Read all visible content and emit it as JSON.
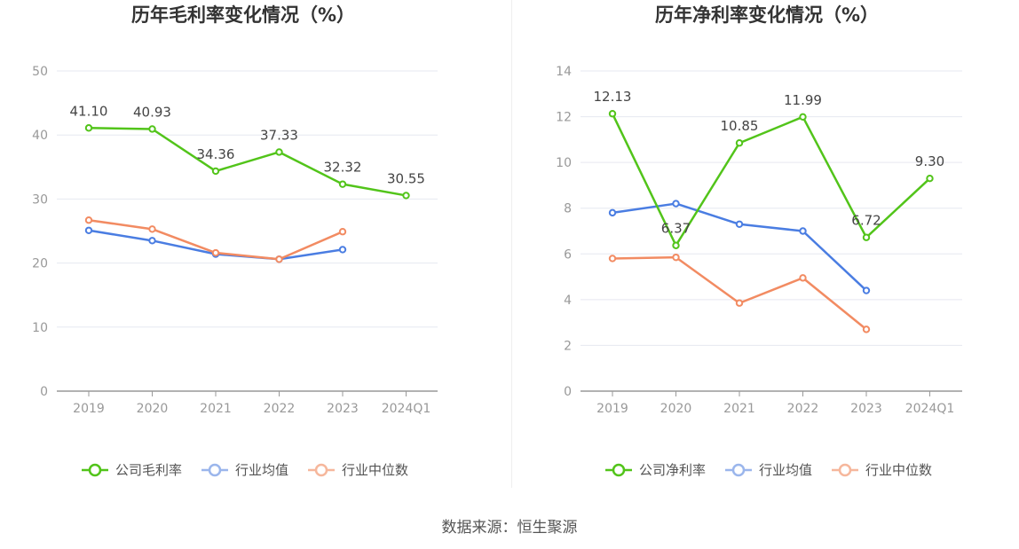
{
  "chart_data": [
    {
      "type": "line",
      "title": "历年毛利率变化情况（%）",
      "categories": [
        "2019",
        "2020",
        "2021",
        "2022",
        "2023",
        "2024Q1"
      ],
      "ylim": [
        0,
        50
      ],
      "yticks": [
        0,
        10,
        20,
        30,
        40,
        50
      ],
      "grid": true,
      "legend_position": "bottom",
      "series": [
        {
          "name": "公司毛利率",
          "color": "#52c41a",
          "values": [
            41.1,
            40.93,
            34.36,
            37.33,
            32.32,
            30.55
          ],
          "labels": [
            "41.10",
            "40.93",
            "34.36",
            "37.33",
            "32.32",
            "30.55"
          ]
        },
        {
          "name": "行业均值",
          "color": "#4a7de2",
          "values": [
            25.1,
            23.5,
            21.4,
            20.6,
            22.1,
            null
          ]
        },
        {
          "name": "行业中位数",
          "color": "#f28b62",
          "values": [
            26.7,
            25.3,
            21.6,
            20.6,
            24.9,
            null
          ]
        }
      ]
    },
    {
      "type": "line",
      "title": "历年净利率变化情况（%）",
      "categories": [
        "2019",
        "2020",
        "2021",
        "2022",
        "2023",
        "2024Q1"
      ],
      "ylim": [
        0,
        14
      ],
      "yticks": [
        0,
        2,
        4,
        6,
        8,
        10,
        12,
        14
      ],
      "grid": true,
      "legend_position": "bottom",
      "series": [
        {
          "name": "公司净利率",
          "color": "#52c41a",
          "values": [
            12.13,
            6.37,
            10.85,
            11.99,
            6.72,
            9.3
          ],
          "labels": [
            "12.13",
            "6.37",
            "10.85",
            "11.99",
            "6.72",
            "9.30"
          ]
        },
        {
          "name": "行业均值",
          "color": "#4a7de2",
          "values": [
            7.8,
            8.2,
            7.3,
            7.0,
            4.4,
            null
          ]
        },
        {
          "name": "行业中位数",
          "color": "#f28b62",
          "values": [
            5.8,
            5.85,
            3.85,
            4.95,
            2.7,
            null
          ]
        }
      ]
    }
  ],
  "footer": {
    "source": "数据来源：恒生聚源"
  }
}
